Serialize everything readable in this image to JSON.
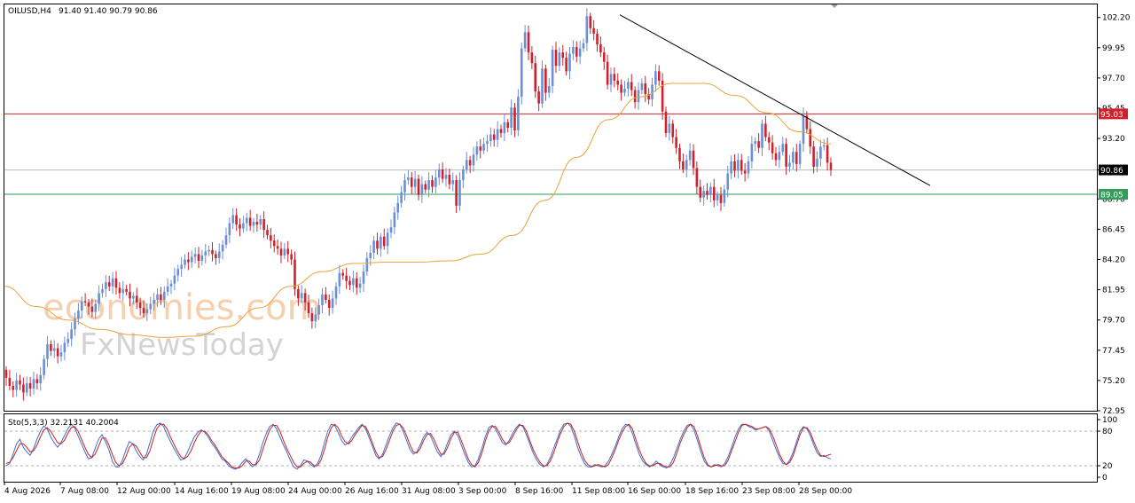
{
  "header": {
    "symbol_label": "OILUSD,H4",
    "ohlc_label": "91.40 91.40 90.79 90.86"
  },
  "watermark": {
    "line1": "economies.com",
    "line2": "FxNewsToday"
  },
  "colors": {
    "bull": "#6b8fd6",
    "bear": "#d0202a",
    "ma": "#e8a33c",
    "resistance": "#d2202a",
    "support": "#2e9e5a",
    "current_price_line": "#b8b8b8",
    "trendline": "#000000",
    "stoch_main": "#3b6fd0",
    "stoch_signal": "#cc1f1f"
  },
  "chart_data": [
    {
      "type": "candlestick",
      "title": "OILUSD,H4",
      "ylim": [
        72.95,
        103.5
      ],
      "y_ticks": [
        "102.20",
        "99.95",
        "97.70",
        "95.45",
        "93.20",
        "90.86",
        "88.70",
        "86.45",
        "84.20",
        "81.95",
        "79.70",
        "77.45",
        "75.20",
        "72.95"
      ],
      "x_ticks": [
        "4 Aug 2026",
        "7 Aug 08:00",
        "12 Aug 00:00",
        "14 Aug 16:00",
        "19 Aug 08:00",
        "24 Aug 00:00",
        "26 Aug 16:00",
        "31 Aug 08:00",
        "3 Sep 00:00",
        "8 Sep 16:00",
        "11 Sep 08:00",
        "16 Sep 00:00",
        "18 Sep 16:00",
        "23 Sep 08:00",
        "28 Sep 00:00"
      ],
      "series": [
        {
          "name": "close",
          "kind": "price",
          "values": [
            75.4,
            74.8,
            74.5,
            75.2,
            74.9,
            74.3,
            75.0,
            74.6,
            75.3,
            75.0,
            75.6,
            76.8,
            77.9,
            77.4,
            77.6,
            77.0,
            77.3,
            78.0,
            78.3,
            79.0,
            79.8,
            80.4,
            81.1,
            81.0,
            80.7,
            80.3,
            80.9,
            81.7,
            82.0,
            82.5,
            82.2,
            82.8,
            82.1,
            81.7,
            82.0,
            81.8,
            81.3,
            81.5,
            81.0,
            80.6,
            80.2,
            80.5,
            80.9,
            81.2,
            81.6,
            81.2,
            81.8,
            82.2,
            82.4,
            83.0,
            83.5,
            83.8,
            84.2,
            84.0,
            84.4,
            84.6,
            84.1,
            84.5,
            84.8,
            84.9,
            84.6,
            84.3,
            84.8,
            85.3,
            86.0,
            86.9,
            87.5,
            86.8,
            86.5,
            86.9,
            87.3,
            86.7,
            87.0,
            86.8,
            87.2,
            86.4,
            86.0,
            85.6,
            85.2,
            85.0,
            84.5,
            85.0,
            84.6,
            84.2,
            82.0,
            81.3,
            81.7,
            81.0,
            80.2,
            79.6,
            80.1,
            80.8,
            81.6,
            81.2,
            80.6,
            81.3,
            82.2,
            83.2,
            83.0,
            82.6,
            82.3,
            82.8,
            82.1,
            82.4,
            83.3,
            84.3,
            84.7,
            85.6,
            85.0,
            85.9,
            85.2,
            86.2,
            86.6,
            87.7,
            88.4,
            89.2,
            90.1,
            90.3,
            89.6,
            90.2,
            89.0,
            89.8,
            89.4,
            90.1,
            89.6,
            90.3,
            90.9,
            90.2,
            90.5,
            89.8,
            90.1,
            88.2,
            90.1,
            90.9,
            91.6,
            91.2,
            92.0,
            92.6,
            92.3,
            92.8,
            93.0,
            93.5,
            93.1,
            93.9,
            93.6,
            94.4,
            94.0,
            95.5,
            93.8,
            96.3,
            99.9,
            101.1,
            99.6,
            98.8,
            96.7,
            95.8,
            98.4,
            96.6,
            97.1,
            99.8,
            98.6,
            99.6,
            99.2,
            98.2,
            99.5,
            100.0,
            99.3,
            99.9,
            100.3,
            102.3,
            101.4,
            101.0,
            100.2,
            99.6,
            98.9,
            97.2,
            98.0,
            97.5,
            97.2,
            96.6,
            96.9,
            97.4,
            96.8,
            95.9,
            96.8,
            97.3,
            96.5,
            96.1,
            97.2,
            98.2,
            97.5,
            95.2,
            93.6,
            94.3,
            93.3,
            92.5,
            91.5,
            90.9,
            91.6,
            92.3,
            91.0,
            89.6,
            88.8,
            89.3,
            89.0,
            89.6,
            88.6,
            89.0,
            88.4,
            89.4,
            90.6,
            91.5,
            90.8,
            91.6,
            90.8,
            90.6,
            91.5,
            92.8,
            93.0,
            92.5,
            94.3,
            93.3,
            92.9,
            92.1,
            91.6,
            92.2,
            92.8,
            91.1,
            91.4,
            92.2,
            91.3,
            92.8,
            94.9,
            93.9,
            92.6,
            91.1,
            91.7,
            92.6,
            92.7,
            91.4,
            90.86
          ]
        },
        {
          "name": "MA",
          "kind": "moving-average",
          "values": [
            82.2,
            80.7,
            79.7,
            79.0,
            78.6,
            78.4,
            78.5,
            79.2,
            80.6,
            82.2,
            83.3,
            83.9,
            84.0,
            84.0,
            84.1,
            84.6,
            86.0,
            88.6,
            91.8,
            94.6,
            96.3,
            97.3,
            97.3,
            96.4,
            95.1,
            93.7,
            92.8
          ]
        },
        {
          "name": "Support",
          "kind": "horizontal-level",
          "values": [
            89.05
          ]
        },
        {
          "name": "Resistance",
          "kind": "horizontal-level",
          "values": [
            95.03
          ]
        },
        {
          "name": "Last price",
          "kind": "horizontal-level",
          "values": [
            90.86
          ]
        },
        {
          "name": "Downtrend line",
          "kind": "trendline",
          "values": [
            102.4,
            89.7
          ]
        }
      ]
    },
    {
      "type": "line",
      "title": "Sto(5,3,3) 32.2131 40.2004",
      "ylim": [
        0,
        100
      ],
      "y_ticks": [
        "100",
        "80",
        "20",
        "0"
      ],
      "levels": [
        80,
        20
      ],
      "series": [
        {
          "name": "Sto(5,3,3)",
          "values": [
            20,
            24,
            40,
            58,
            66,
            52,
            44,
            38,
            50,
            66,
            80,
            89,
            84,
            70,
            60,
            52,
            60,
            72,
            84,
            92,
            86,
            72,
            58,
            44,
            32,
            34,
            50,
            66,
            74,
            62,
            48,
            28,
            18,
            18,
            30,
            48,
            62,
            58,
            46,
            36,
            30,
            40,
            60,
            80,
            91,
            94,
            88,
            74,
            62,
            50,
            40,
            30,
            32,
            44,
            58,
            70,
            78,
            82,
            78,
            70,
            60,
            52,
            42,
            32,
            28,
            20,
            16,
            14,
            18,
            26,
            32,
            24,
            18,
            24,
            40,
            60,
            76,
            88,
            92,
            84,
            70,
            56,
            44,
            30,
            18,
            14,
            20,
            30,
            28,
            22,
            18,
            24,
            38,
            60,
            80,
            92,
            90,
            78,
            64,
            56,
            60,
            70,
            78,
            86,
            92,
            84,
            70,
            54,
            38,
            32,
            40,
            56,
            72,
            86,
            94,
            92,
            80,
            64,
            48,
            40,
            44,
            56,
            70,
            78,
            72,
            58,
            44,
            36,
            44,
            60,
            74,
            80,
            72,
            56,
            40,
            26,
            18,
            20,
            32,
            50,
            70,
            86,
            90,
            84,
            72,
            60,
            56,
            64,
            76,
            86,
            92,
            88,
            74,
            58,
            42,
            30,
            22,
            18,
            22,
            34,
            50,
            66,
            82,
            92,
            94,
            88,
            72,
            52,
            36,
            24,
            18,
            18,
            22,
            20,
            18,
            20,
            28,
            40,
            54,
            70,
            84,
            92,
            90,
            76,
            58,
            40,
            28,
            22,
            18,
            22,
            28,
            22,
            18,
            16,
            22,
            34,
            50,
            66,
            80,
            90,
            92,
            82,
            64,
            44,
            28,
            20,
            18,
            22,
            20,
            18,
            24,
            36,
            52,
            70,
            84,
            92,
            92,
            88,
            86,
            82,
            84,
            86,
            88,
            80,
            64,
            48,
            34,
            24,
            22,
            30,
            44,
            62,
            80,
            88,
            84,
            72,
            56,
            42,
            36,
            38,
            34,
            32
          ]
        },
        {
          "name": "Signal",
          "values": [
            24,
            26,
            34,
            46,
            58,
            58,
            52,
            44,
            46,
            56,
            70,
            82,
            86,
            80,
            70,
            60,
            58,
            64,
            76,
            86,
            88,
            80,
            66,
            52,
            40,
            34,
            40,
            54,
            68,
            68,
            56,
            40,
            26,
            20,
            24,
            36,
            52,
            58,
            54,
            44,
            34,
            34,
            46,
            66,
            84,
            92,
            92,
            84,
            70,
            58,
            46,
            36,
            32,
            36,
            46,
            60,
            72,
            80,
            80,
            74,
            64,
            56,
            46,
            36,
            30,
            24,
            18,
            16,
            16,
            20,
            28,
            28,
            22,
            22,
            30,
            48,
            66,
            82,
            90,
            90,
            80,
            64,
            50,
            38,
            26,
            18,
            18,
            24,
            28,
            26,
            20,
            20,
            30,
            48,
            70,
            86,
            92,
            86,
            72,
            62,
            58,
            64,
            74,
            82,
            90,
            88,
            76,
            60,
            44,
            34,
            36,
            48,
            64,
            80,
            90,
            92,
            86,
            72,
            56,
            44,
            42,
            50,
            64,
            74,
            76,
            66,
            52,
            40,
            40,
            52,
            68,
            78,
            78,
            64,
            48,
            32,
            22,
            18,
            26,
            42,
            62,
            80,
            88,
            88,
            78,
            66,
            58,
            60,
            70,
            82,
            90,
            90,
            80,
            64,
            48,
            36,
            26,
            20,
            20,
            28,
            42,
            60,
            76,
            88,
            94,
            92,
            80,
            62,
            44,
            30,
            22,
            18,
            20,
            22,
            20,
            18,
            22,
            34,
            48,
            64,
            78,
            88,
            92,
            84,
            66,
            48,
            34,
            24,
            20,
            20,
            24,
            24,
            20,
            18,
            18,
            26,
            42,
            60,
            74,
            86,
            92,
            88,
            72,
            52,
            34,
            22,
            18,
            20,
            22,
            20,
            20,
            30,
            46,
            62,
            78,
            90,
            92,
            90,
            88,
            84,
            84,
            86,
            88,
            84,
            72,
            56,
            40,
            28,
            22,
            26,
            38,
            56,
            74,
            86,
            86,
            78,
            62,
            48,
            38,
            36,
            38,
            40
          ]
        }
      ]
    }
  ]
}
